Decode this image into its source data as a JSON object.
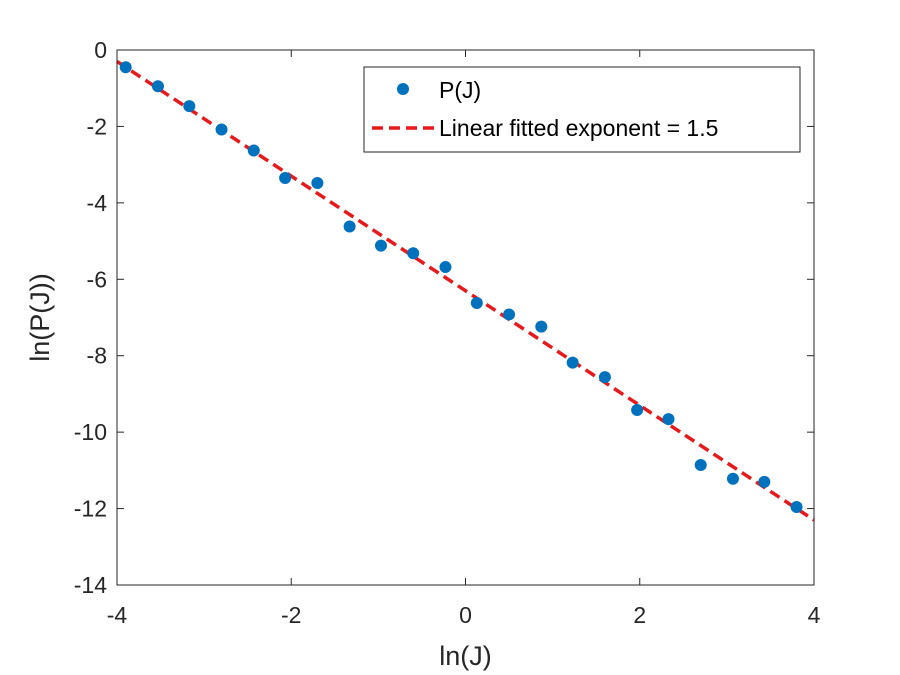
{
  "chart_data": {
    "type": "scatter",
    "title": "",
    "xlabel": "ln(J)",
    "ylabel": "ln(P(J))",
    "xlim": [
      -4,
      4
    ],
    "ylim": [
      -14,
      0
    ],
    "xticks": [
      -4,
      -2,
      0,
      2,
      4
    ],
    "yticks": [
      0,
      -2,
      -4,
      -6,
      -8,
      -10,
      -12,
      -14
    ],
    "grid": false,
    "legend_position": "top-right",
    "series": [
      {
        "name": "P(J)",
        "kind": "scatter",
        "color": "#0072bd",
        "x": [
          -3.9,
          -3.53,
          -3.17,
          -2.8,
          -2.43,
          -2.07,
          -1.7,
          -1.33,
          -0.97,
          -0.6,
          -0.23,
          0.13,
          0.5,
          0.87,
          1.23,
          1.6,
          1.97,
          2.33,
          2.7,
          3.07,
          3.43,
          3.8
        ],
        "y": [
          -0.45,
          -0.95,
          -1.47,
          -2.08,
          -2.63,
          -3.35,
          -3.48,
          -4.62,
          -5.12,
          -5.32,
          -5.68,
          -6.62,
          -6.92,
          -7.24,
          -8.18,
          -8.56,
          -9.42,
          -9.66,
          -10.86,
          -11.22,
          -11.3,
          -11.96
        ]
      },
      {
        "name": "Linear fitted exponent = 1.5",
        "kind": "line",
        "color": "#e41a1c",
        "dash": "dashed",
        "x": [
          -4,
          4
        ],
        "y": [
          -0.3,
          -12.3
        ]
      }
    ]
  }
}
